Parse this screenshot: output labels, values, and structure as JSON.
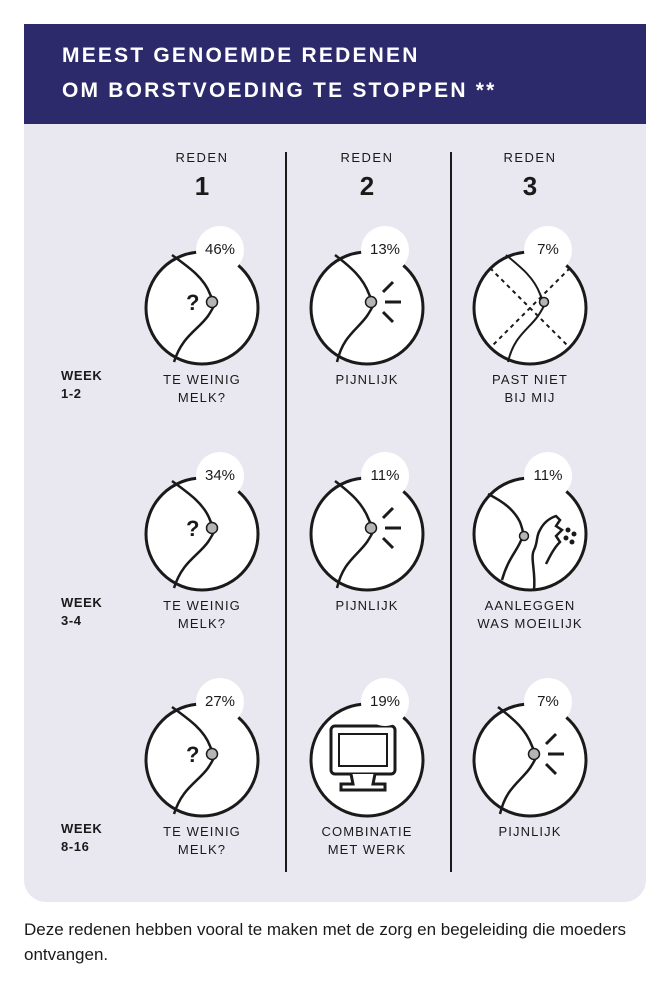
{
  "header": {
    "line1": "MEEST GENOEMDE REDENEN",
    "line2": "OM BORSTVOEDING TE STOPPEN **"
  },
  "columns": [
    {
      "label": "REDEN",
      "number": "1"
    },
    {
      "label": "REDEN",
      "number": "2"
    },
    {
      "label": "REDEN",
      "number": "3"
    }
  ],
  "rows": [
    {
      "week_line1": "WEEK",
      "week_line2": "1-2",
      "cells": [
        {
          "percent": "46%",
          "icon": "breast-question-icon",
          "caption_line1": "TE WEINIG",
          "caption_line2": "MELK?"
        },
        {
          "percent": "13%",
          "icon": "breast-pain-icon",
          "caption_line1": "PIJNLIJK",
          "caption_line2": ""
        },
        {
          "percent": "7%",
          "icon": "breast-crossed-icon",
          "caption_line1": "PAST NIET",
          "caption_line2": "BIJ MIJ"
        }
      ]
    },
    {
      "week_line1": "WEEK",
      "week_line2": "3-4",
      "cells": [
        {
          "percent": "34%",
          "icon": "breast-question-icon",
          "caption_line1": "TE WEINIG",
          "caption_line2": "MELK?"
        },
        {
          "percent": "11%",
          "icon": "breast-pain-icon",
          "caption_line1": "PIJNLIJK",
          "caption_line2": ""
        },
        {
          "percent": "11%",
          "icon": "baby-latching-icon",
          "caption_line1": "AANLEGGEN",
          "caption_line2": "WAS MOEILIJK"
        }
      ]
    },
    {
      "week_line1": "WEEK",
      "week_line2": "8-16",
      "cells": [
        {
          "percent": "27%",
          "icon": "breast-question-icon",
          "caption_line1": "TE WEINIG",
          "caption_line2": "MELK?"
        },
        {
          "percent": "19%",
          "icon": "computer-monitor-icon",
          "caption_line1": "COMBINATIE",
          "caption_line2": "MET WERK"
        },
        {
          "percent": "7%",
          "icon": "breast-pain-icon",
          "caption_line1": "PIJNLIJK",
          "caption_line2": ""
        }
      ]
    }
  ],
  "footer": {
    "text": "Deze redenen hebben vooral te maken met de zorg en begeleiding die moeders ontvangen."
  },
  "colors": {
    "header_bg": "#2c2a6b",
    "panel_bg": "#e9e8f0",
    "ink": "#1a1a1a",
    "nipple": "#b5b5b5"
  }
}
